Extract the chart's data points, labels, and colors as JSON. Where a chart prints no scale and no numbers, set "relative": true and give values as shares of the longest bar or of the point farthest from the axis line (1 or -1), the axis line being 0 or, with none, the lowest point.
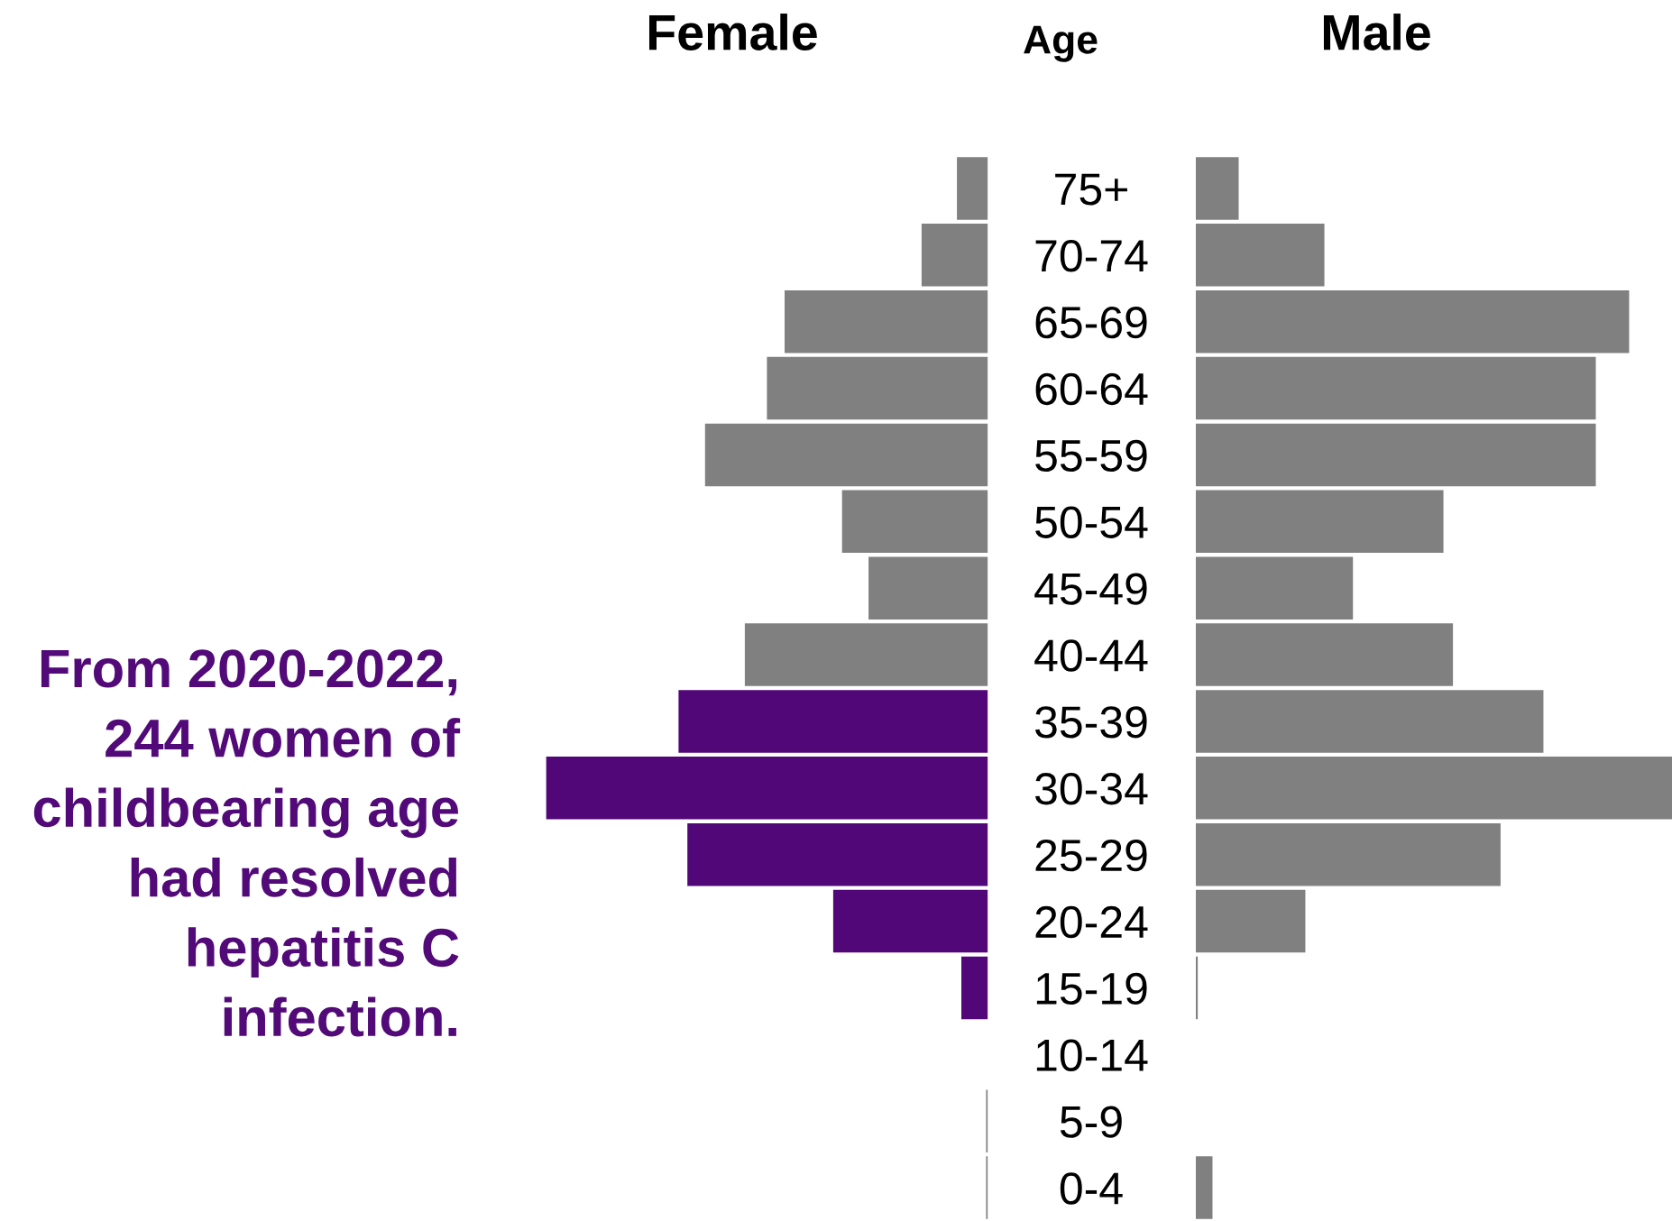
{
  "chart_data": [
    {
      "type": "bar",
      "orientation": "horizontal",
      "relative": true,
      "title": "Female",
      "ylabel": "Age",
      "tick_labels": "y",
      "categories": [
        "75+",
        "70-74",
        "65-69",
        "60-64",
        "55-59",
        "50-54",
        "45-49",
        "40-44",
        "35-39",
        "30-34",
        "25-29",
        "20-24",
        "15-19",
        "10-14",
        "5-9",
        "0-4"
      ],
      "values": [
        0.07,
        0.15,
        0.46,
        0.5,
        0.64,
        0.33,
        0.27,
        0.55,
        0.7,
        1,
        0.68,
        0.35,
        0.06,
        0,
        0.004,
        0.004
      ],
      "colors": [
        "#808080",
        "#808080",
        "#808080",
        "#808080",
        "#808080",
        "#808080",
        "#808080",
        "#808080",
        "#520778",
        "#520778",
        "#520778",
        "#520778",
        "#520778",
        "#808080",
        "#808080",
        "#808080"
      ],
      "annotations": [
        "From 2020-2022,\n244 women of\nchildbearing age\nhad resolved\nhepatitis C\ninfection."
      ]
    },
    {
      "type": "bar",
      "orientation": "horizontal",
      "relative": true,
      "title": "Male",
      "categories": [
        null,
        null,
        null,
        null,
        null,
        null,
        null,
        null,
        null,
        null,
        null,
        null,
        null,
        null,
        null,
        null
      ],
      "values": [
        0.09,
        0.27,
        0.91,
        0.84,
        0.84,
        0.52,
        0.33,
        0.54,
        0.73,
        1,
        0.64,
        0.23,
        0.004,
        0,
        0,
        0.035
      ],
      "color": "#808080"
    }
  ]
}
